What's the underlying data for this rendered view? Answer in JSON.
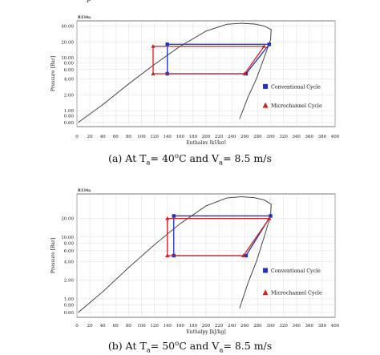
{
  "top_fragment": "p",
  "figure": {
    "legend_conventional": "Conventional Cycle",
    "legend_microchannel": "Microchannel Cycle",
    "panels": [
      {
        "caption_prefix": "(a) At T",
        "caption_sub1": "a",
        "caption_mid1": "= 40",
        "caption_sup": "o",
        "caption_mid2": "C and V",
        "caption_sub2": "a",
        "caption_suffix": "= 8.5 m/s",
        "chart_title": "R134a",
        "xlabel": "Enthalpy [kJ/kg]",
        "ylabel": "Pressure [Bar]"
      },
      {
        "caption_prefix": "(b) At T",
        "caption_sub1": "a",
        "caption_mid1": "= 50",
        "caption_sup": "o",
        "caption_mid2": "C and V",
        "caption_sub2": "a",
        "caption_suffix": "= 8.5 m/s",
        "chart_title": "R134a",
        "xlabel": "Enthalpy [kJ/kg]",
        "ylabel": "Pressure [Bar]"
      }
    ]
  },
  "chart_data": [
    {
      "type": "line",
      "title": "R134a",
      "xlabel": "Enthalpy [kJ/kg]",
      "ylabel": "Pressure [Bar]",
      "xlim": [
        0,
        400
      ],
      "ylim": [
        0.5,
        50
      ],
      "yscale": "log",
      "grid": true,
      "legend_position": "right",
      "x_ticks": [
        0,
        20,
        40,
        60,
        80,
        100,
        120,
        140,
        160,
        180,
        200,
        220,
        240,
        260,
        280,
        300,
        320,
        340,
        360,
        380,
        400
      ],
      "y_ticks": [
        40.0,
        20.0,
        10.0,
        8.0,
        6.0,
        4.0,
        2.0,
        1.0,
        0.8,
        0.6
      ],
      "y_tick_labels": [
        "40.00",
        "20.00",
        "10.00",
        "8.00",
        "6.00",
        "4.00",
        "2.00",
        "1.00",
        "0.80",
        "0.60"
      ],
      "saturation_dome": {
        "liquid_line": [
          [
            2,
            0.6
          ],
          [
            40,
            1.3
          ],
          [
            80,
            3.2
          ],
          [
            120,
            7.5
          ],
          [
            160,
            16.5
          ],
          [
            200,
            32
          ],
          [
            232,
            43
          ],
          [
            255,
            45
          ]
        ],
        "vapor_line": [
          [
            255,
            45
          ],
          [
            275,
            43.5
          ],
          [
            290,
            40
          ],
          [
            301,
            34
          ],
          [
            300,
            22
          ],
          [
            290,
            10
          ],
          [
            278,
            4
          ],
          [
            265,
            1.8
          ],
          [
            252,
            0.7
          ]
        ]
      },
      "series": [
        {
          "name": "Conventional Cycle",
          "color": "#1f2fc8",
          "marker": "square",
          "points": [
            [
              140,
              5.0
            ],
            [
              262,
              5.0
            ],
            [
              298,
              18.0
            ],
            [
              140,
              18.0
            ],
            [
              140,
              5.0
            ]
          ]
        },
        {
          "name": "Microchannel Cycle",
          "color": "#d42020",
          "marker": "triangle",
          "points": [
            [
              118,
              5.0
            ],
            [
              260,
              5.0
            ],
            [
              290,
              16.5
            ],
            [
              118,
              16.5
            ],
            [
              118,
              5.0
            ]
          ]
        }
      ]
    },
    {
      "type": "line",
      "title": "R134a",
      "xlabel": "Enthalpy [kJ/kg]",
      "ylabel": "Pressure [Bar]",
      "xlim": [
        0,
        400
      ],
      "ylim": [
        0.5,
        50
      ],
      "yscale": "log",
      "grid": true,
      "legend_position": "right",
      "x_ticks": [
        0,
        20,
        40,
        60,
        80,
        100,
        120,
        140,
        160,
        180,
        200,
        220,
        240,
        260,
        280,
        300,
        320,
        340,
        360,
        380,
        400
      ],
      "y_ticks": [
        20.0,
        10.0,
        8.0,
        6.0,
        4.0,
        2.0,
        1.0,
        0.8,
        0.6
      ],
      "y_tick_labels": [
        "20.00",
        "10.00",
        "8.00",
        "6.00",
        "4.00",
        "2.00",
        "1.00",
        "0.80",
        "0.60"
      ],
      "saturation_dome": {
        "liquid_line": [
          [
            2,
            0.6
          ],
          [
            40,
            1.3
          ],
          [
            80,
            3.2
          ],
          [
            120,
            7.5
          ],
          [
            160,
            16.5
          ],
          [
            200,
            32
          ],
          [
            232,
            43
          ],
          [
            255,
            45
          ]
        ],
        "vapor_line": [
          [
            255,
            45
          ],
          [
            275,
            43.5
          ],
          [
            290,
            40
          ],
          [
            301,
            34
          ],
          [
            300,
            22
          ],
          [
            290,
            10
          ],
          [
            278,
            4
          ],
          [
            265,
            1.8
          ],
          [
            252,
            0.7
          ]
        ]
      },
      "series": [
        {
          "name": "Conventional Cycle",
          "color": "#1f2fc8",
          "marker": "square",
          "points": [
            [
              150,
              5.0
            ],
            [
              262,
              5.0
            ],
            [
              300,
              22.0
            ],
            [
              150,
              22.0
            ],
            [
              150,
              5.0
            ]
          ]
        },
        {
          "name": "Microchannel Cycle",
          "color": "#d42020",
          "marker": "triangle",
          "points": [
            [
              140,
              5.0
            ],
            [
              258,
              5.0
            ],
            [
              298,
              20.0
            ],
            [
              140,
              20.0
            ],
            [
              140,
              5.0
            ]
          ]
        }
      ]
    }
  ]
}
